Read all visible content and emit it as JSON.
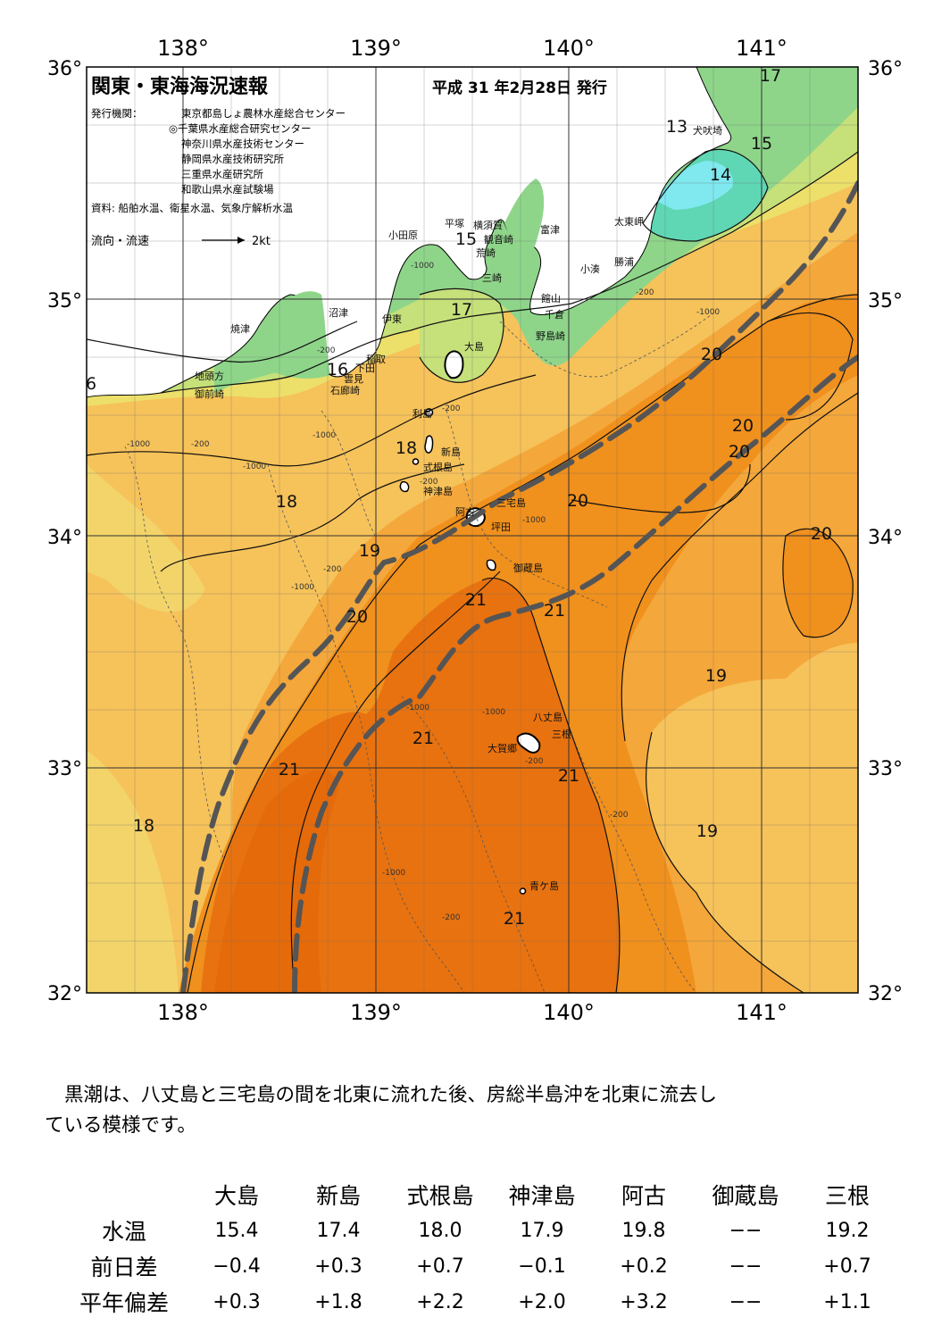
{
  "map": {
    "title": "関東・東海海況速報",
    "published": "平成 31 年2月28日 発行",
    "issuer_label": "発行機関：",
    "issuers": [
      "東京都島しょ農林水産総合センター",
      "◎千葉県水産総合研究センター",
      "神奈川県水産技術センター",
      "静岡県水産技術研究所",
      "三重県水産研究所",
      "和歌山県水産試験場"
    ],
    "sources": "資料: 船舶水温、衛星水温、気象庁解析水温",
    "flow_label": "流向・流速",
    "flow_scale": "2kt",
    "lon_labels": [
      "138°",
      "139°",
      "140°",
      "141°"
    ],
    "lat_labels": [
      "36°",
      "35°",
      "34°",
      "33°",
      "32°"
    ],
    "temperature_labels": [
      "17",
      "13",
      "15",
      "14",
      "15",
      "17",
      "16",
      "18",
      "18",
      "19",
      "20",
      "20",
      "20",
      "20",
      "20",
      "20",
      "21",
      "21",
      "21",
      "21",
      "21",
      "18",
      "19",
      "19",
      "6"
    ],
    "depth_labels": [
      "-1000",
      "-200",
      "-1000",
      "-200",
      "-1000",
      "-200",
      "-1000",
      "-200",
      "-1000",
      "-200",
      "-1000",
      "-200",
      "-1000",
      "-1000",
      "-200",
      "-1000",
      "-1000",
      "-200",
      "-200"
    ],
    "places": [
      "犬吠埼",
      "太東岬",
      "勝浦",
      "小湊",
      "富津",
      "横須賀",
      "観音崎",
      "荒崎",
      "平塚",
      "小田原",
      "三崎",
      "館山",
      "千倉",
      "野島崎",
      "沼津",
      "伊東",
      "焼津",
      "稲取",
      "下田",
      "雲見",
      "石廊崎",
      "地頭方",
      "御前崎",
      "大島",
      "利島",
      "新島",
      "式根島",
      "神津島",
      "三宅島",
      "阿古",
      "坪田",
      "御蔵島",
      "八丈島",
      "三根",
      "大賀郷",
      "青ケ島"
    ]
  },
  "summary": {
    "line1": "黒潮は、八丈島と三宅島の間を北東に流れた後、房総半島沖を北東に流去し",
    "line2": "ている模様です。"
  },
  "table": {
    "stations": [
      "大島",
      "新島",
      "式根島",
      "神津島",
      "阿古",
      "御蔵島",
      "三根"
    ],
    "rows": [
      {
        "label": "水温",
        "values": [
          "15.4",
          "17.4",
          "18.0",
          "17.9",
          "19.8",
          "−−",
          "19.2"
        ]
      },
      {
        "label": "前日差",
        "values": [
          "−0.4",
          "+0.3",
          "+0.7",
          "−0.1",
          "+0.2",
          "−−",
          "+0.7"
        ]
      },
      {
        "label": "平年偏差",
        "values": [
          "+0.3",
          "+1.8",
          "+2.2",
          "+2.0",
          "+3.2",
          "−−",
          "+1.1"
        ]
      }
    ]
  },
  "colors": {
    "warm21": "#e8720f",
    "warm20": "#f0901d",
    "warm19": "#f4a73a",
    "warm18": "#f6c25a",
    "cool17": "#ecdf6a",
    "cool16": "#c6e07a",
    "cool15": "#8ed58a",
    "cool14": "#5fd6b4",
    "cool13": "#7fe9ef",
    "kuroshio": "#555555"
  }
}
